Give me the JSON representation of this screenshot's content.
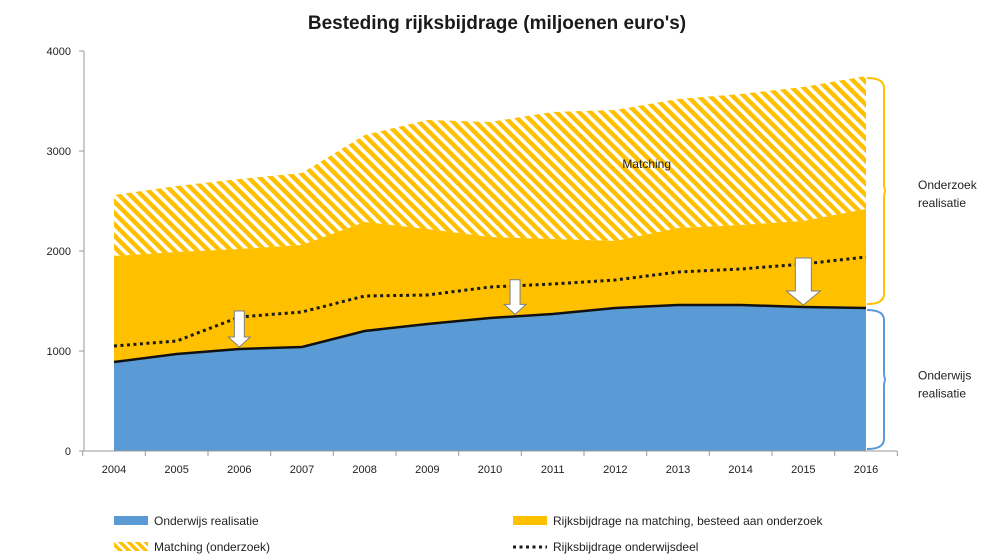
{
  "chart_data": {
    "type": "area",
    "title": "Besteding rijksbijdrage (miljoenen euro's)",
    "xlabel": "",
    "ylabel": "",
    "categories": [
      "2004",
      "2005",
      "2006",
      "2007",
      "2008",
      "2009",
      "2010",
      "2011",
      "2012",
      "2013",
      "2014",
      "2015",
      "2016"
    ],
    "ylim": [
      0,
      4000
    ],
    "yticks": [
      0,
      1000,
      2000,
      3000,
      4000
    ],
    "stack_tops": {
      "onderwijs": [
        890,
        970,
        1020,
        1040,
        1200,
        1270,
        1330,
        1370,
        1430,
        1460,
        1460,
        1440,
        1430
      ],
      "onderzoek": [
        1950,
        1990,
        2020,
        2060,
        2290,
        2220,
        2140,
        2120,
        2100,
        2230,
        2260,
        2300,
        2420
      ],
      "matching": [
        2560,
        2650,
        2720,
        2780,
        3160,
        3310,
        3290,
        3390,
        3410,
        3520,
        3570,
        3640,
        3750
      ]
    },
    "series": [
      {
        "name": "Onderwijs realisatie",
        "kind": "area",
        "color": "#5b9bd5",
        "values": [
          890,
          970,
          1020,
          1040,
          1200,
          1270,
          1330,
          1370,
          1430,
          1460,
          1460,
          1440,
          1430
        ]
      },
      {
        "name": "Rijksbijdrage na matching, besteed aan onderzoek",
        "kind": "area",
        "color": "#ffc000",
        "values": [
          1060,
          1020,
          1000,
          1020,
          1090,
          950,
          810,
          750,
          670,
          770,
          800,
          860,
          990
        ]
      },
      {
        "name": "Matching (onderzoek)",
        "kind": "area-hatched",
        "color": "#ffc000",
        "values": [
          610,
          660,
          700,
          720,
          870,
          1090,
          1150,
          1270,
          1310,
          1290,
          1310,
          1340,
          1330
        ]
      },
      {
        "name": "Rijksbijdrage onderwijsdeel",
        "kind": "dotted-line",
        "color": "#1a1a1a",
        "values": [
          1050,
          1100,
          1340,
          1390,
          1550,
          1560,
          1640,
          1670,
          1710,
          1790,
          1820,
          1870,
          1940
        ]
      }
    ],
    "annotations": {
      "matching_label": "Matching",
      "bracket_upper": [
        "Onderzoek",
        "realisatie"
      ],
      "bracket_lower": [
        "Onderwijs",
        "realisatie"
      ],
      "arrows_at_years": [
        "2006",
        "2010",
        "2015"
      ],
      "arrow_fill": "#ffffff",
      "upper_bracket_color": "#ffc000",
      "lower_bracket_color": "#5b9bd5"
    },
    "legend": {
      "placement": "bottom",
      "items": [
        {
          "label": "Onderwijs realisatie",
          "swatch": "solid-blue"
        },
        {
          "label": "Rijksbijdrage na matching, besteed aan onderzoek",
          "swatch": "solid-yellow"
        },
        {
          "label": "Matching (onderzoek)",
          "swatch": "hatched-yellow"
        },
        {
          "label": "Rijksbijdrage onderwijsdeel",
          "swatch": "dotted-line"
        }
      ]
    },
    "grid": false
  }
}
